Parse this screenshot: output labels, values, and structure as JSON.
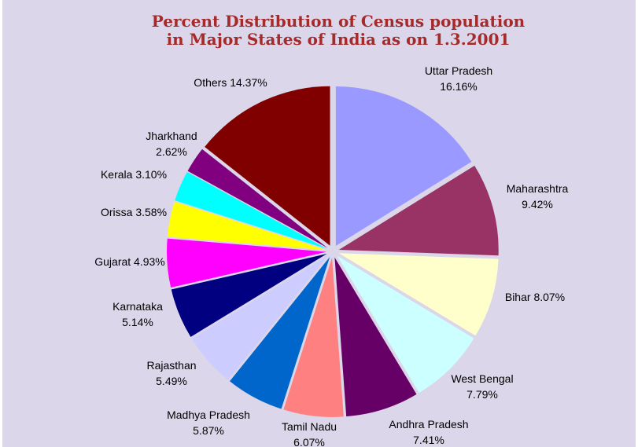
{
  "chart_data": {
    "type": "pie",
    "title": "Percent Distribution of Census population in Major States of India as on 1.3.2001",
    "categories": [
      "Uttar Pradesh",
      "Maharashtra",
      "Bihar",
      "West Bengal",
      "Andhra Pradesh",
      "Tamil Nadu",
      "Madhya Pradesh",
      "Rajasthan",
      "Karnataka",
      "Gujarat",
      "Orissa",
      "Kerala",
      "Jharkhand",
      "Others"
    ],
    "values": [
      16.16,
      9.42,
      8.07,
      7.79,
      7.41,
      6.07,
      5.87,
      5.49,
      5.14,
      4.93,
      3.58,
      3.1,
      2.62,
      14.37
    ],
    "value_labels": [
      "16.16%",
      "9.42%",
      "8.07%",
      "7.79%",
      "7.41%",
      "6.07%",
      "5.87%",
      "5.49%",
      "5.14%",
      "4.93%",
      "3.58%",
      "3.10%",
      "2.62%",
      "14.37%"
    ],
    "colors": [
      "#9999ff",
      "#993366",
      "#ffffcc",
      "#ccffff",
      "#660066",
      "#ff8080",
      "#0066cc",
      "#ccccff",
      "#000080",
      "#ff00ff",
      "#ffff00",
      "#00ffff",
      "#800080",
      "#800000"
    ]
  }
}
